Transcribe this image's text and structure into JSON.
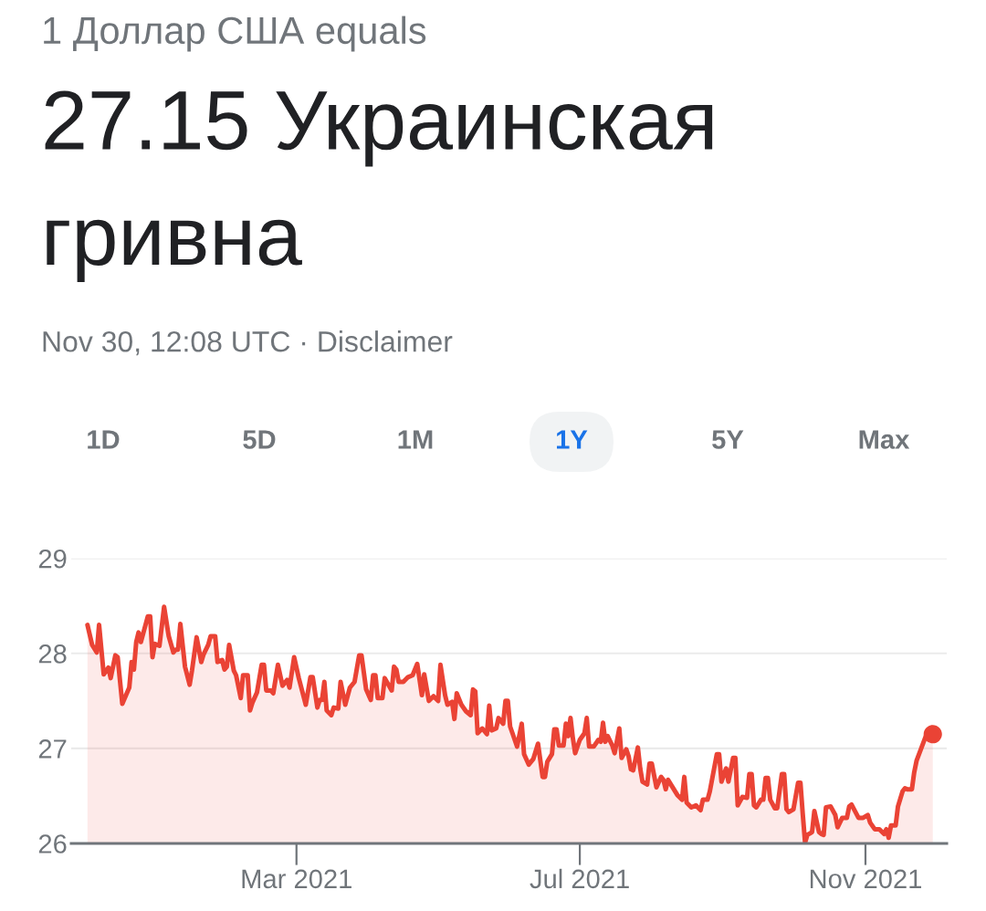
{
  "chart_data": {
    "type": "area",
    "subtitle": "1 Доллар США equals",
    "title": "27.15 Украинская гривна",
    "annotations": [
      "Nov 30, 12:08 UTC · Disclaimer",
      "1D",
      "5D",
      "1M",
      "1Y",
      "5Y",
      "Max"
    ],
    "xlim": [
      "2020-11-24",
      "2021-12-06"
    ],
    "xticks": [
      {
        "value": "2021-03-01",
        "label": "Mar 2021"
      },
      {
        "value": "2021-07-01",
        "label": "Jul 2021"
      },
      {
        "value": "2021-11-01",
        "label": "Nov 2021"
      }
    ],
    "ylim": [
      26,
      29
    ],
    "yticks": [
      26,
      27,
      28,
      29
    ],
    "grid": "y",
    "series": [
      {
        "color": "#ea4335",
        "x": [
          "2020-12-01",
          "2020-12-03",
          "2020-12-05",
          "2020-12-06",
          "2020-12-08",
          "2020-12-10",
          "2020-12-11",
          "2020-12-13",
          "2020-12-14",
          "2020-12-16",
          "2020-12-19",
          "2020-12-20",
          "2020-12-21",
          "2020-12-22",
          "2020-12-23",
          "2020-12-24",
          "2020-12-27",
          "2020-12-28",
          "2020-12-29",
          "2020-12-30",
          "2021-01-01",
          "2021-01-03",
          "2021-01-05",
          "2021-01-07",
          "2021-01-08",
          "2021-01-09",
          "2021-01-10",
          "2021-01-12",
          "2021-01-14",
          "2021-01-15",
          "2021-01-17",
          "2021-01-19",
          "2021-01-20",
          "2021-01-22",
          "2021-01-23",
          "2021-01-25",
          "2021-01-26",
          "2021-01-28",
          "2021-01-29",
          "2021-01-30",
          "2021-01-31",
          "2021-02-02",
          "2021-02-03",
          "2021-02-05",
          "2021-02-06",
          "2021-02-08",
          "2021-02-09",
          "2021-02-10",
          "2021-02-12",
          "2021-02-14",
          "2021-02-15",
          "2021-02-16",
          "2021-02-18",
          "2021-02-19",
          "2021-02-21",
          "2021-02-23",
          "2021-02-25",
          "2021-02-26",
          "2021-02-28",
          "2021-03-02",
          "2021-03-05",
          "2021-03-07",
          "2021-03-08",
          "2021-03-10",
          "2021-03-11",
          "2021-03-12",
          "2021-03-13",
          "2021-03-14",
          "2021-03-16",
          "2021-03-17",
          "2021-03-19",
          "2021-03-20",
          "2021-03-22",
          "2021-03-24",
          "2021-03-26",
          "2021-03-28",
          "2021-03-29",
          "2021-03-31",
          "2021-04-02",
          "2021-04-03",
          "2021-04-04",
          "2021-04-05",
          "2021-04-07",
          "2021-04-08",
          "2021-04-11",
          "2021-04-12",
          "2021-04-13",
          "2021-04-14",
          "2021-04-16",
          "2021-04-18",
          "2021-04-20",
          "2021-04-22",
          "2021-04-24",
          "2021-04-25",
          "2021-04-27",
          "2021-04-29",
          "2021-05-01",
          "2021-05-02",
          "2021-05-04",
          "2021-05-05",
          "2021-05-07",
          "2021-05-08",
          "2021-05-09",
          "2021-05-11",
          "2021-05-13",
          "2021-05-15",
          "2021-05-16",
          "2021-05-17",
          "2021-05-18",
          "2021-05-20",
          "2021-05-22",
          "2021-05-23",
          "2021-05-24",
          "2021-05-26",
          "2021-05-27",
          "2021-05-29",
          "2021-05-30",
          "2021-05-31",
          "2021-06-01",
          "2021-06-02",
          "2021-06-04",
          "2021-06-06",
          "2021-06-07",
          "2021-06-09",
          "2021-06-11",
          "2021-06-13",
          "2021-06-15",
          "2021-06-16",
          "2021-06-17",
          "2021-06-19",
          "2021-06-20",
          "2021-06-21",
          "2021-06-22",
          "2021-06-24",
          "2021-06-25",
          "2021-06-26",
          "2021-06-27",
          "2021-06-28",
          "2021-06-29",
          "2021-07-01",
          "2021-07-03",
          "2021-07-04",
          "2021-07-05",
          "2021-07-07",
          "2021-07-09",
          "2021-07-10",
          "2021-07-11",
          "2021-07-12",
          "2021-07-13",
          "2021-07-15",
          "2021-07-16",
          "2021-07-18",
          "2021-07-19",
          "2021-07-21",
          "2021-07-22",
          "2021-07-23",
          "2021-07-24",
          "2021-07-26",
          "2021-07-27",
          "2021-07-28",
          "2021-07-30",
          "2021-07-31",
          "2021-08-01",
          "2021-08-03",
          "2021-08-05",
          "2021-08-06",
          "2021-08-07",
          "2021-08-08",
          "2021-08-10",
          "2021-08-12",
          "2021-08-14",
          "2021-08-15",
          "2021-08-16",
          "2021-08-18",
          "2021-08-20",
          "2021-08-22",
          "2021-08-23",
          "2021-08-25",
          "2021-08-26",
          "2021-08-29",
          "2021-08-30",
          "2021-08-31",
          "2021-09-02",
          "2021-09-03",
          "2021-09-05",
          "2021-09-06",
          "2021-09-07",
          "2021-09-09",
          "2021-09-11",
          "2021-09-12",
          "2021-09-13",
          "2021-09-14",
          "2021-09-15",
          "2021-09-17",
          "2021-09-18",
          "2021-09-19",
          "2021-09-20",
          "2021-09-21",
          "2021-09-23",
          "2021-09-24",
          "2021-09-26",
          "2021-09-27",
          "2021-09-28",
          "2021-09-29",
          "2021-10-01",
          "2021-10-03",
          "2021-10-04",
          "2021-10-05",
          "2021-10-06",
          "2021-10-07",
          "2021-10-09",
          "2021-10-10",
          "2021-10-12",
          "2021-10-13",
          "2021-10-14",
          "2021-10-15",
          "2021-10-17",
          "2021-10-19",
          "2021-10-20",
          "2021-10-22",
          "2021-10-24",
          "2021-10-25",
          "2021-10-26",
          "2021-10-29",
          "2021-10-31",
          "2021-11-02",
          "2021-11-03",
          "2021-11-05",
          "2021-11-07",
          "2021-11-09",
          "2021-11-10",
          "2021-11-11",
          "2021-11-12",
          "2021-11-14",
          "2021-11-15",
          "2021-11-17",
          "2021-11-18",
          "2021-11-19",
          "2021-11-21",
          "2021-11-22",
          "2021-11-23",
          "2021-11-25",
          "2021-11-27",
          "2021-11-28",
          "2021-11-30"
        ],
        "values": [
          28.3,
          28.09,
          28.01,
          28.3,
          27.78,
          27.85,
          27.74,
          27.98,
          27.96,
          27.47,
          27.64,
          27.91,
          27.83,
          28.12,
          28.22,
          28.12,
          28.39,
          28.39,
          27.96,
          28.1,
          28.08,
          28.49,
          28.18,
          28.01,
          28.04,
          28.04,
          28.31,
          27.86,
          27.67,
          27.82,
          28.17,
          27.91,
          27.99,
          28.09,
          28.18,
          28.18,
          27.91,
          27.93,
          27.83,
          27.86,
          28.09,
          27.82,
          27.77,
          27.53,
          27.77,
          27.77,
          27.4,
          27.48,
          27.59,
          27.88,
          27.88,
          27.61,
          27.61,
          27.58,
          27.88,
          27.66,
          27.72,
          27.64,
          27.96,
          27.74,
          27.46,
          27.75,
          27.75,
          27.43,
          27.51,
          27.51,
          27.7,
          27.4,
          27.35,
          27.43,
          27.42,
          27.7,
          27.46,
          27.64,
          27.7,
          27.98,
          27.98,
          27.62,
          27.51,
          27.77,
          27.77,
          27.53,
          27.53,
          27.74,
          27.61,
          27.86,
          27.83,
          27.7,
          27.7,
          27.75,
          27.77,
          27.89,
          27.56,
          27.78,
          27.5,
          27.55,
          27.5,
          27.88,
          27.56,
          27.46,
          27.49,
          27.31,
          27.58,
          27.46,
          27.39,
          27.35,
          27.62,
          27.6,
          27.16,
          27.21,
          27.15,
          27.45,
          27.19,
          27.21,
          27.32,
          27.26,
          27.5,
          27.5,
          27.23,
          27.16,
          27.02,
          27.26,
          26.94,
          26.83,
          26.89,
          27.05,
          26.7,
          26.7,
          26.86,
          26.94,
          27.2,
          27.2,
          27.03,
          27.03,
          27.26,
          27.13,
          27.32,
          27.11,
          26.95,
          27.09,
          27.16,
          27.32,
          27.02,
          27.02,
          27.09,
          27.07,
          27.27,
          27.07,
          27.13,
          27.03,
          26.95,
          27.21,
          26.9,
          26.99,
          26.92,
          26.78,
          26.77,
          27.01,
          26.79,
          26.65,
          26.62,
          26.84,
          26.84,
          26.59,
          26.7,
          26.67,
          26.57,
          26.67,
          26.59,
          26.51,
          26.46,
          26.7,
          26.43,
          26.38,
          26.4,
          26.35,
          26.46,
          26.46,
          26.55,
          26.94,
          26.94,
          26.65,
          26.79,
          26.65,
          26.9,
          26.9,
          26.4,
          26.49,
          26.48,
          26.73,
          26.73,
          26.4,
          26.38,
          26.46,
          26.46,
          26.69,
          26.69,
          26.46,
          26.37,
          26.37,
          26.73,
          26.73,
          26.36,
          26.33,
          26.36,
          26.64,
          26.64,
          26.31,
          26.01,
          26.09,
          26.12,
          26.34,
          26.12,
          26.1,
          26.09,
          26.38,
          26.39,
          26.3,
          26.17,
          26.27,
          26.27,
          26.39,
          26.41,
          26.27,
          26.27,
          26.3,
          26.22,
          26.15,
          26.15,
          26.1,
          26.15,
          26.06,
          26.19,
          26.19,
          26.39,
          26.55,
          26.58,
          26.57,
          26.57,
          26.75,
          26.87,
          27.0,
          27.13,
          27.17,
          27.15
        ]
      },
      {
        "type": "scatter",
        "color": "#ea4335",
        "marker": "circle",
        "x": [
          "2021-11-30"
        ],
        "values": [
          27.15
        ]
      }
    ]
  }
}
